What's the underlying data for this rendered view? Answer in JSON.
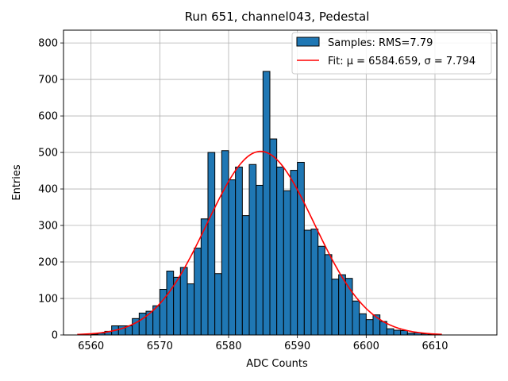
{
  "chart_data": {
    "type": "bar",
    "title": "Run 651, channel043, Pedestal",
    "xlabel": "ADC Counts",
    "ylabel": "Entries",
    "xlim": [
      6556,
      6619
    ],
    "ylim": [
      0,
      835
    ],
    "xticks": [
      6560,
      6570,
      6580,
      6590,
      6600,
      6610
    ],
    "yticks": [
      0,
      100,
      200,
      300,
      400,
      500,
      600,
      700,
      800
    ],
    "grid": true,
    "bin_width": 1,
    "histogram": {
      "name": "Samples: RMS=7.79",
      "color": "#1f77b4",
      "bin_starts": [
        6560,
        6561,
        6562,
        6563,
        6564,
        6565,
        6566,
        6567,
        6568,
        6569,
        6570,
        6571,
        6572,
        6573,
        6574,
        6575,
        6576,
        6577,
        6578,
        6579,
        6580,
        6581,
        6582,
        6583,
        6584,
        6585,
        6586,
        6587,
        6588,
        6589,
        6590,
        6591,
        6592,
        6593,
        6594,
        6595,
        6596,
        6597,
        6598,
        6599,
        6600,
        6601,
        6602,
        6603,
        6604,
        6605,
        6606,
        6607,
        6608,
        6609
      ],
      "values": [
        2,
        5,
        10,
        25,
        25,
        25,
        45,
        60,
        65,
        80,
        125,
        175,
        158,
        185,
        140,
        238,
        318,
        500,
        168,
        505,
        425,
        460,
        327,
        467,
        410,
        722,
        537,
        460,
        395,
        451,
        473,
        287,
        290,
        243,
        220,
        153,
        165,
        155,
        93,
        58,
        42,
        55,
        37,
        17,
        13,
        12,
        5,
        6,
        3,
        2
      ]
    },
    "fit": {
      "name": "Fit: μ = 6584.659, σ = 7.794",
      "color": "#ff0000",
      "mu": 6584.659,
      "sigma": 7.794,
      "amplitude": 503,
      "x_range": [
        6558,
        6611
      ]
    },
    "legend": {
      "location": "top-right",
      "entries": [
        "Samples: RMS=7.79",
        "Fit: μ = 6584.659, σ = 7.794"
      ]
    }
  }
}
